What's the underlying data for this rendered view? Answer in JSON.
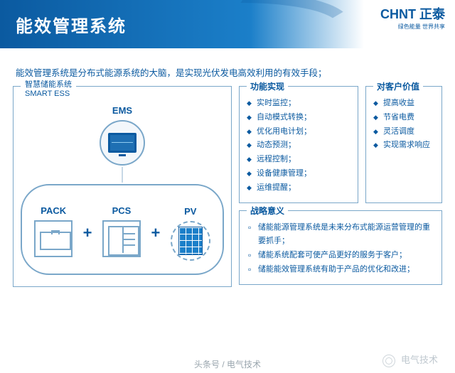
{
  "header": {
    "title": "能效管理系统"
  },
  "logo": {
    "main": "CHNT 正泰",
    "sub": "绿色能量 世界共享"
  },
  "intro": "能效管理系统是分布式能源系统的大脑，是实现光伏发电高效利用的有效手段；",
  "diagram": {
    "panel_title_zh": "智慧储能系统",
    "panel_title_en": "SMART ESS",
    "ems": "EMS",
    "nodes": {
      "pack": "PACK",
      "pcs": "PCS",
      "pv": "PV"
    },
    "plus": "+"
  },
  "func": {
    "title": "功能实现",
    "items": [
      "实时监控；",
      "自动模式转换；",
      "优化用电计划；",
      "动态预测；",
      "远程控制；",
      "设备健康管理；",
      "运维提醒；"
    ]
  },
  "value": {
    "title": "对客户价值",
    "items": [
      "提高收益",
      "节省电费",
      "灵活调度",
      "实现需求响应"
    ]
  },
  "strategy": {
    "title": "战略意义",
    "items": [
      "储能能源管理系统是未来分布式能源运营管理的重要抓手；",
      "储能系统配套可使产品更好的服务于客户；",
      "储能能效管理系统有助于产品的优化和改进；"
    ]
  },
  "footer": {
    "source": "头条号 / 电气技术",
    "watermark": "电气技术"
  },
  "palette": {
    "primary": "#0b5aa0",
    "border": "#7aa7c9",
    "bg": "#ffffff"
  }
}
